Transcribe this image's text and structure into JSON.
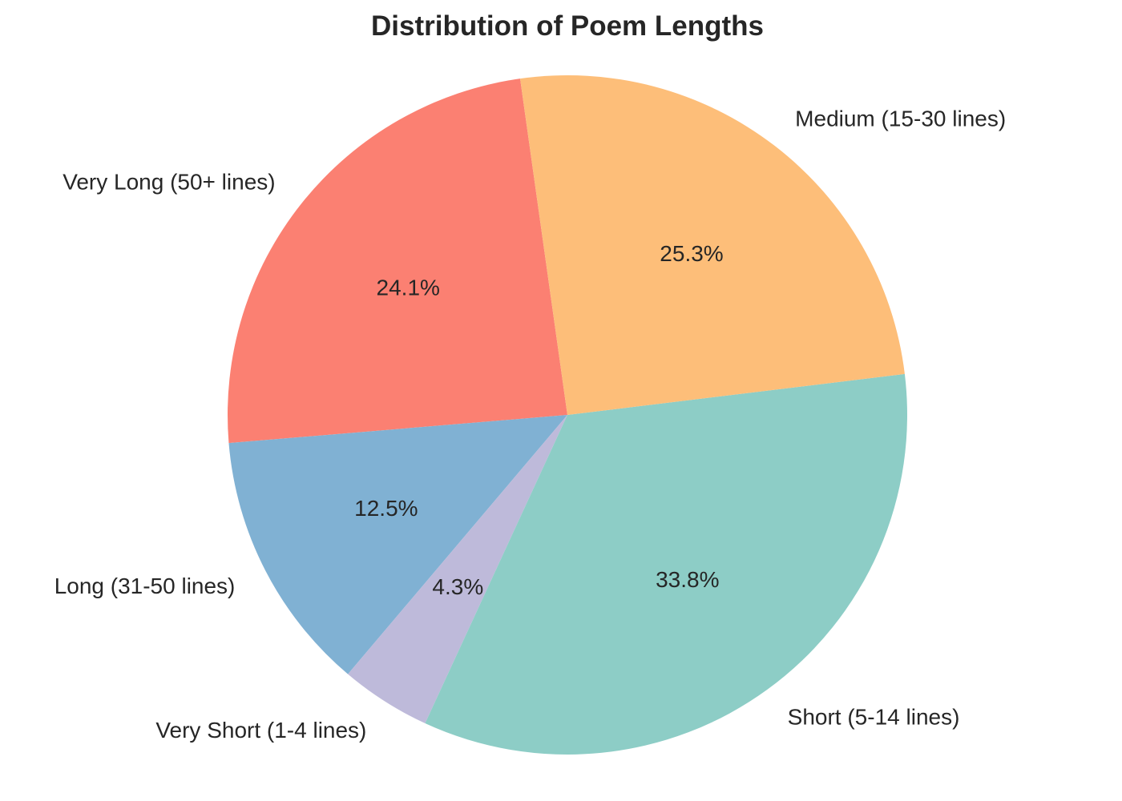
{
  "chart_data": {
    "type": "pie",
    "title": "Distribution of Poem Lengths",
    "slices": [
      {
        "label": "Very Long (50+ lines)",
        "value": 24.1,
        "pct_text": "24.1%",
        "color": "#fb8072"
      },
      {
        "label": "Long (31-50 lines)",
        "value": 12.5,
        "pct_text": "12.5%",
        "color": "#80b1d3"
      },
      {
        "label": "Very Short (1-4 lines)",
        "value": 4.3,
        "pct_text": "4.3%",
        "color": "#bebada"
      },
      {
        "label": "Short (5-14 lines)",
        "value": 33.8,
        "pct_text": "33.8%",
        "color": "#8dcdc6"
      },
      {
        "label": "Medium (15-30 lines)",
        "value": 25.3,
        "pct_text": "25.3%",
        "color": "#fdbe79"
      }
    ],
    "legend": "none"
  }
}
